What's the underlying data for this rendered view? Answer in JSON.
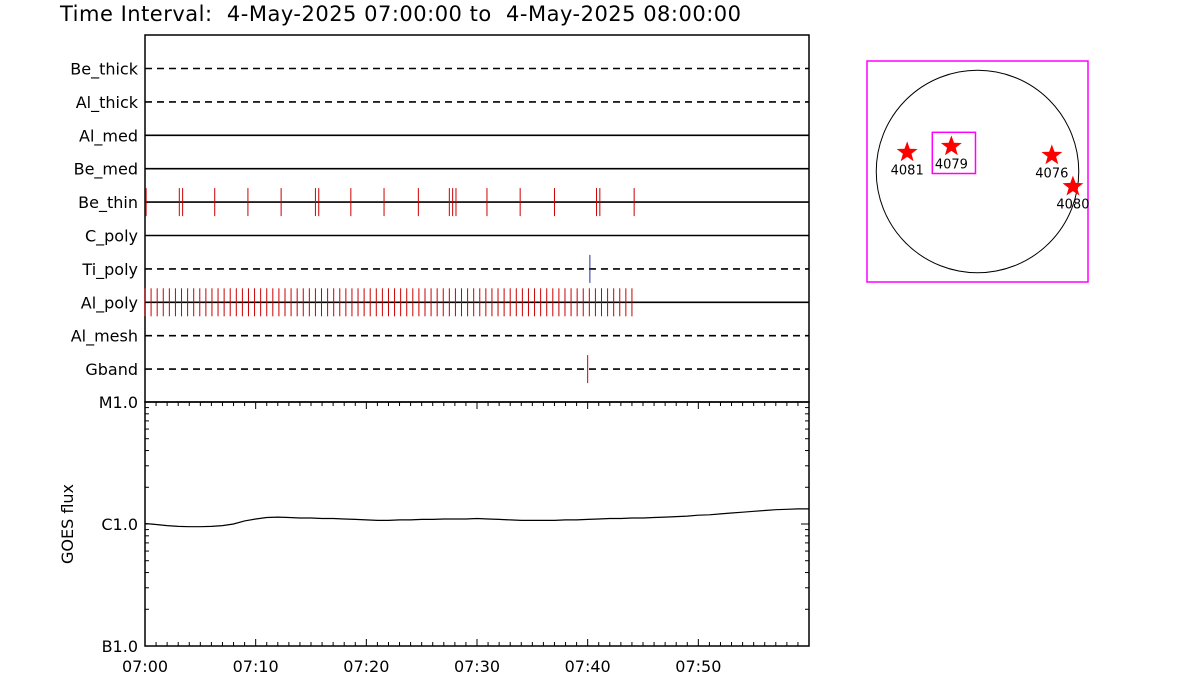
{
  "title": "Time Interval:  4-May-2025 07:00:00 to  4-May-2025 08:00:00",
  "chart_data": [
    {
      "type": "event-timeline",
      "x_unit": "minutes after 07:00",
      "xlim": [
        0,
        60
      ],
      "x_ticks": [
        "07:00",
        "07:10",
        "07:20",
        "07:30",
        "07:40",
        "07:50"
      ],
      "x_tick_values": [
        0,
        10,
        20,
        30,
        40,
        50
      ],
      "channels": [
        {
          "name": "Be_thick",
          "style": "dashed",
          "events": []
        },
        {
          "name": "Al_thick",
          "style": "dashed",
          "events": []
        },
        {
          "name": "Al_med",
          "style": "solid",
          "events": []
        },
        {
          "name": "Be_med",
          "style": "solid",
          "events": []
        },
        {
          "name": "Be_thin",
          "style": "solid",
          "event_color": "#cc0000",
          "events": [
            0.1,
            3.1,
            3.4,
            6.3,
            9.3,
            12.3,
            15.4,
            15.7,
            18.6,
            21.6,
            24.7,
            27.5,
            27.8,
            28.1,
            30.9,
            33.9,
            37.0,
            40.8,
            41.1,
            44.2
          ]
        },
        {
          "name": "C_poly",
          "style": "solid",
          "events": []
        },
        {
          "name": "Ti_poly",
          "style": "dashed",
          "event_color": "#2a2aa0",
          "events": [
            40.2
          ]
        },
        {
          "name": "Al_poly",
          "style": "solid",
          "event_color": "#cc0000",
          "events_range": {
            "start": 0.0,
            "end": 44.2,
            "spacing": 0.55
          }
        },
        {
          "name": "Al_mesh",
          "style": "dashed",
          "events": []
        },
        {
          "name": "Gband",
          "style": "dashed",
          "event_color": "#cc0000",
          "events": [
            40.0
          ]
        }
      ]
    },
    {
      "type": "line",
      "ylabel": "GOES flux",
      "yscale": "log",
      "y_ticks": [
        "M1.0",
        "C1.0",
        "B1.0"
      ],
      "y_tick_values": [
        1e-05,
        1e-06,
        1e-07
      ],
      "ylim": [
        1e-07,
        1e-05
      ],
      "xlim": [
        0,
        60
      ],
      "series": [
        {
          "x": [
            0,
            1,
            2,
            3,
            4,
            5,
            6,
            7,
            8,
            9,
            10,
            11,
            12,
            13,
            14,
            15,
            16,
            17,
            18,
            19,
            20,
            21,
            22,
            23,
            24,
            25,
            26,
            27,
            28,
            29,
            30,
            31,
            32,
            33,
            34,
            35,
            36,
            37,
            38,
            39,
            40,
            41,
            42,
            43,
            44,
            45,
            46,
            47,
            48,
            49,
            50,
            51,
            52,
            53,
            54,
            55,
            56,
            57,
            58,
            59,
            60
          ],
          "y": [
            1.01e-06,
            9.9e-07,
            9.7e-07,
            9.55e-07,
            9.5e-07,
            9.5e-07,
            9.55e-07,
            9.7e-07,
            1e-06,
            1.06e-06,
            1.1e-06,
            1.13e-06,
            1.14e-06,
            1.13e-06,
            1.12e-06,
            1.12e-06,
            1.11e-06,
            1.11e-06,
            1.1e-06,
            1.09e-06,
            1.08e-06,
            1.07e-06,
            1.07e-06,
            1.08e-06,
            1.08e-06,
            1.09e-06,
            1.09e-06,
            1.1e-06,
            1.1e-06,
            1.1e-06,
            1.11e-06,
            1.1e-06,
            1.09e-06,
            1.08e-06,
            1.07e-06,
            1.07e-06,
            1.07e-06,
            1.07e-06,
            1.08e-06,
            1.08e-06,
            1.09e-06,
            1.1e-06,
            1.11e-06,
            1.11e-06,
            1.12e-06,
            1.12e-06,
            1.13e-06,
            1.14e-06,
            1.15e-06,
            1.16e-06,
            1.18e-06,
            1.19e-06,
            1.21e-06,
            1.23e-06,
            1.25e-06,
            1.27e-06,
            1.29e-06,
            1.31e-06,
            1.32e-06,
            1.33e-06,
            1.33e-06
          ]
        }
      ]
    },
    {
      "type": "scatter",
      "description_label": "sun",
      "solar_x_range": [
        -1100,
        1100
      ],
      "solar_y_range": [
        -1100,
        1100
      ],
      "regions": [
        {
          "label": "4081",
          "x": -700,
          "y": 190
        },
        {
          "label": "4079",
          "x": -260,
          "y": 250
        },
        {
          "label": "4076",
          "x": 740,
          "y": 160
        },
        {
          "label": "4080",
          "x": 950,
          "y": -150
        }
      ],
      "fov_box": {
        "x0": -450,
        "x1": -20,
        "y0": -20,
        "y1": 390
      },
      "star_color": "#ff0000",
      "frame_color": "#ff00ff"
    }
  ]
}
